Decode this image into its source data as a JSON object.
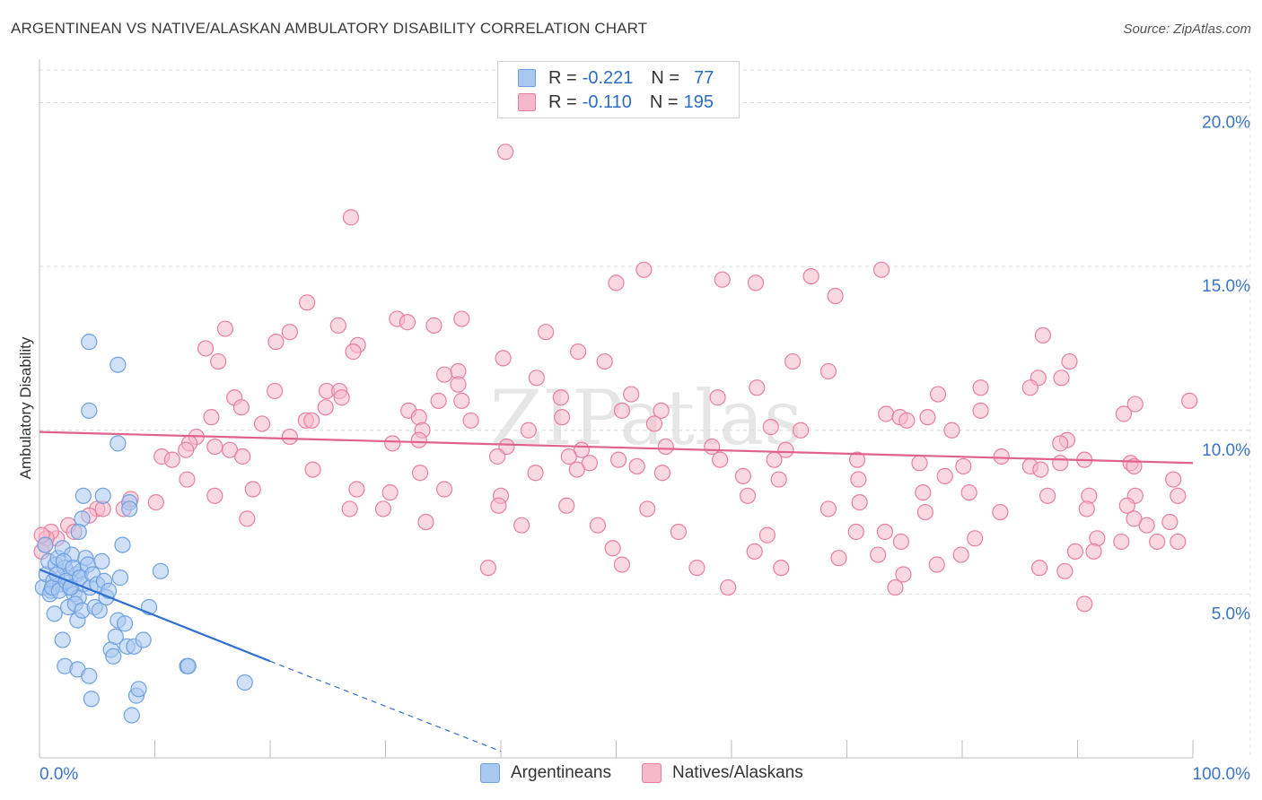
{
  "title": "ARGENTINEAN VS NATIVE/ALASKAN AMBULATORY DISABILITY CORRELATION CHART",
  "source": "Source: ZipAtlas.com",
  "watermark": "ZIPatlas",
  "legend": {
    "rows": [
      {
        "r_label": "R =",
        "r_value": "-0.221",
        "n_label": "N =",
        "n_value": "77",
        "color": "#a9c8f0"
      },
      {
        "r_label": "R =",
        "r_value": "-0.110",
        "n_label": "N =",
        "n_value": "195",
        "color": "#f5b8cb"
      }
    ]
  },
  "bottom_legend": [
    {
      "label": "Argentineans",
      "color": "#a9c8f0"
    },
    {
      "label": "Natives/Alaskans",
      "color": "#f5b8cb"
    }
  ],
  "chart_data": {
    "type": "scatter",
    "title": "ARGENTINEAN VS NATIVE/ALASKAN AMBULATORY DISABILITY CORRELATION CHART",
    "xlabel": "",
    "ylabel": "Ambulatory Disability",
    "xlim": [
      0,
      100
    ],
    "ylim": [
      0,
      21
    ],
    "x_tick_labels": [
      "0.0%",
      "100.0%"
    ],
    "y_ticks": [
      5,
      10,
      15,
      20
    ],
    "y_tick_labels": [
      "5.0%",
      "10.0%",
      "15.0%",
      "20.0%"
    ],
    "grid": true,
    "series": [
      {
        "name": "Argentineans",
        "color": "#6fa1e0",
        "fill": "#a9c8f0",
        "trend": {
          "x0": 0,
          "y0": 5.75,
          "x1": 20,
          "y1": 2.95,
          "dash_to_x": 40,
          "dash_to_y": 0.2
        },
        "points": [
          [
            0.3,
            5.2
          ],
          [
            0.6,
            5.6
          ],
          [
            0.8,
            6.0
          ],
          [
            1.0,
            5.1
          ],
          [
            1.2,
            5.4
          ],
          [
            1.4,
            5.9
          ],
          [
            1.6,
            6.1
          ],
          [
            1.8,
            5.3
          ],
          [
            2.0,
            6.4
          ],
          [
            2.2,
            5.8
          ],
          [
            2.4,
            5.5
          ],
          [
            2.6,
            5.2
          ],
          [
            2.8,
            6.2
          ],
          [
            3.0,
            5.0
          ],
          [
            3.2,
            5.6
          ],
          [
            3.4,
            4.9
          ],
          [
            3.6,
            5.7
          ],
          [
            3.8,
            5.3
          ],
          [
            0.5,
            6.5
          ],
          [
            0.9,
            5.0
          ],
          [
            1.1,
            5.2
          ],
          [
            1.3,
            4.4
          ],
          [
            1.5,
            5.6
          ],
          [
            1.7,
            5.1
          ],
          [
            2.1,
            6.0
          ],
          [
            2.3,
            5.4
          ],
          [
            2.5,
            4.6
          ],
          [
            2.7,
            5.2
          ],
          [
            2.9,
            5.8
          ],
          [
            3.1,
            4.7
          ],
          [
            3.3,
            4.2
          ],
          [
            3.5,
            5.5
          ],
          [
            3.7,
            4.5
          ],
          [
            4.0,
            6.1
          ],
          [
            4.2,
            5.9
          ],
          [
            4.4,
            5.2
          ],
          [
            4.6,
            5.6
          ],
          [
            4.8,
            4.6
          ],
          [
            5.0,
            5.3
          ],
          [
            5.2,
            4.5
          ],
          [
            5.4,
            6.0
          ],
          [
            5.6,
            5.4
          ],
          [
            5.8,
            4.9
          ],
          [
            6.0,
            5.1
          ],
          [
            6.2,
            3.3
          ],
          [
            6.4,
            3.1
          ],
          [
            6.6,
            3.7
          ],
          [
            6.8,
            4.2
          ],
          [
            7.0,
            5.5
          ],
          [
            7.2,
            6.5
          ],
          [
            7.4,
            4.1
          ],
          [
            7.6,
            3.4
          ],
          [
            7.8,
            7.8
          ],
          [
            8.0,
            1.3
          ],
          [
            8.2,
            3.4
          ],
          [
            8.4,
            1.9
          ],
          [
            8.6,
            2.1
          ],
          [
            9.0,
            3.6
          ],
          [
            9.5,
            4.6
          ],
          [
            10.5,
            5.7
          ],
          [
            12.8,
            2.8
          ],
          [
            12.9,
            2.8
          ],
          [
            17.8,
            2.3
          ],
          [
            4.3,
            12.7
          ],
          [
            6.8,
            12.0
          ],
          [
            4.3,
            10.6
          ],
          [
            6.8,
            9.6
          ],
          [
            3.8,
            8.0
          ],
          [
            5.5,
            8.0
          ],
          [
            7.8,
            7.6
          ],
          [
            3.7,
            7.3
          ],
          [
            3.4,
            6.9
          ],
          [
            2.2,
            2.8
          ],
          [
            3.3,
            2.7
          ],
          [
            4.5,
            1.8
          ],
          [
            4.3,
            2.5
          ],
          [
            2.0,
            3.6
          ]
        ]
      },
      {
        "name": "Natives/Alaskans",
        "color": "#e97fa0",
        "fill": "#f5b8cb",
        "trend": {
          "x0": 0,
          "y0": 9.95,
          "x1": 100,
          "y1": 9.0
        },
        "points": [
          [
            40.4,
            18.5
          ],
          [
            27,
            16.5
          ],
          [
            52.4,
            14.9
          ],
          [
            73,
            14.9
          ],
          [
            50,
            14.5
          ],
          [
            59.2,
            14.6
          ],
          [
            66.9,
            14.7
          ],
          [
            62.1,
            14.5
          ],
          [
            69,
            14.1
          ],
          [
            23.2,
            13.9
          ],
          [
            31.0,
            13.4
          ],
          [
            36.6,
            13.4
          ],
          [
            31.9,
            13.3
          ],
          [
            34.2,
            13.2
          ],
          [
            25.9,
            13.2
          ],
          [
            16.1,
            13.1
          ],
          [
            21.7,
            13.0
          ],
          [
            43.9,
            13.0
          ],
          [
            87,
            12.9
          ],
          [
            20.5,
            12.7
          ],
          [
            27.6,
            12.6
          ],
          [
            14.4,
            12.5
          ],
          [
            27.2,
            12.4
          ],
          [
            46.7,
            12.4
          ],
          [
            40.2,
            12.2
          ],
          [
            15.5,
            12.1
          ],
          [
            49.0,
            12.1
          ],
          [
            65.3,
            12.1
          ],
          [
            89.3,
            12.1
          ],
          [
            36.3,
            11.8
          ],
          [
            68.4,
            11.8
          ],
          [
            35.1,
            11.7
          ],
          [
            43.1,
            11.6
          ],
          [
            86.6,
            11.6
          ],
          [
            88.6,
            11.6
          ],
          [
            36.3,
            11.4
          ],
          [
            81.6,
            11.3
          ],
          [
            85.9,
            11.3
          ],
          [
            24.9,
            11.2
          ],
          [
            26.0,
            11.2
          ],
          [
            20.4,
            11.2
          ],
          [
            62.2,
            11.3
          ],
          [
            51.3,
            11.1
          ],
          [
            77.9,
            11.1
          ],
          [
            16.9,
            11.0
          ],
          [
            26.2,
            11.0
          ],
          [
            45.2,
            11.0
          ],
          [
            58.8,
            11.0
          ],
          [
            36.6,
            10.9
          ],
          [
            34.6,
            10.9
          ],
          [
            99.7,
            10.9
          ],
          [
            95,
            10.8
          ],
          [
            17.5,
            10.7
          ],
          [
            24.8,
            10.7
          ],
          [
            32.0,
            10.6
          ],
          [
            50.5,
            10.6
          ],
          [
            53.9,
            10.6
          ],
          [
            81.6,
            10.6
          ],
          [
            73.4,
            10.5
          ],
          [
            74.6,
            10.4
          ],
          [
            77,
            10.4
          ],
          [
            94,
            10.5
          ],
          [
            32.9,
            10.4
          ],
          [
            45.3,
            10.4
          ],
          [
            14.9,
            10.4
          ],
          [
            23.1,
            10.3
          ],
          [
            37.4,
            10.3
          ],
          [
            75.2,
            10.3
          ],
          [
            19.3,
            10.2
          ],
          [
            63.4,
            10.1
          ],
          [
            23.6,
            10.3
          ],
          [
            33.2,
            10.0
          ],
          [
            42.4,
            10.0
          ],
          [
            66.0,
            10.0
          ],
          [
            79.1,
            10.0
          ],
          [
            53.3,
            10.2
          ],
          [
            13.6,
            9.8
          ],
          [
            21.7,
            9.8
          ],
          [
            13.0,
            9.6
          ],
          [
            15.2,
            9.5
          ],
          [
            30.6,
            9.6
          ],
          [
            32.9,
            9.7
          ],
          [
            40.5,
            9.5
          ],
          [
            47.0,
            9.4
          ],
          [
            54.3,
            9.5
          ],
          [
            58.3,
            9.5
          ],
          [
            64.7,
            9.4
          ],
          [
            89.1,
            9.7
          ],
          [
            88.5,
            9.6
          ],
          [
            16.5,
            9.4
          ],
          [
            12.7,
            9.4
          ],
          [
            17.6,
            9.2
          ],
          [
            10.6,
            9.2
          ],
          [
            11.5,
            9.1
          ],
          [
            45.9,
            9.2
          ],
          [
            50.2,
            9.1
          ],
          [
            39.7,
            9.2
          ],
          [
            47.7,
            9.0
          ],
          [
            51.8,
            8.9
          ],
          [
            59.0,
            9.1
          ],
          [
            63.7,
            9.1
          ],
          [
            70.9,
            9.1
          ],
          [
            83.4,
            9.2
          ],
          [
            88.5,
            9.0
          ],
          [
            76.3,
            9.0
          ],
          [
            90.6,
            9.1
          ],
          [
            94.6,
            9.0
          ],
          [
            94.9,
            8.9
          ],
          [
            85.9,
            8.9
          ],
          [
            80.1,
            8.9
          ],
          [
            23.7,
            8.8
          ],
          [
            33.0,
            8.7
          ],
          [
            43.0,
            8.7
          ],
          [
            46.6,
            8.8
          ],
          [
            54.0,
            8.7
          ],
          [
            61.0,
            8.6
          ],
          [
            64.1,
            8.5
          ],
          [
            71.0,
            8.5
          ],
          [
            78.5,
            8.6
          ],
          [
            86.8,
            8.8
          ],
          [
            98.3,
            8.5
          ],
          [
            12.8,
            8.5
          ],
          [
            18.5,
            8.2
          ],
          [
            27.5,
            8.2
          ],
          [
            30.4,
            8.1
          ],
          [
            35.1,
            8.2
          ],
          [
            40.0,
            8.0
          ],
          [
            61.4,
            8.0
          ],
          [
            71.1,
            7.8
          ],
          [
            76.6,
            8.1
          ],
          [
            80.6,
            8.1
          ],
          [
            87.4,
            8.0
          ],
          [
            98.7,
            8.0
          ],
          [
            91.0,
            8.0
          ],
          [
            95.0,
            8.0
          ],
          [
            15.2,
            8.0
          ],
          [
            10.1,
            7.8
          ],
          [
            7.9,
            7.9
          ],
          [
            7.3,
            7.6
          ],
          [
            5.0,
            7.6
          ],
          [
            26.9,
            7.6
          ],
          [
            29.8,
            7.6
          ],
          [
            39.8,
            7.7
          ],
          [
            45.7,
            7.7
          ],
          [
            52.7,
            7.6
          ],
          [
            68.4,
            7.6
          ],
          [
            76.8,
            7.5
          ],
          [
            83.3,
            7.5
          ],
          [
            90.8,
            7.6
          ],
          [
            94.3,
            7.7
          ],
          [
            94.9,
            7.3
          ],
          [
            96.0,
            7.1
          ],
          [
            98.0,
            7.2
          ],
          [
            4.3,
            7.4
          ],
          [
            5.5,
            7.6
          ],
          [
            2.5,
            7.1
          ],
          [
            3.0,
            6.9
          ],
          [
            1.5,
            6.7
          ],
          [
            1.0,
            6.9
          ],
          [
            0.6,
            6.7
          ],
          [
            0.2,
            6.3
          ],
          [
            0.5,
            6.5
          ],
          [
            0.2,
            6.8
          ],
          [
            18.0,
            7.3
          ],
          [
            33.5,
            7.2
          ],
          [
            41.8,
            7.1
          ],
          [
            48.4,
            7.1
          ],
          [
            55.4,
            6.9
          ],
          [
            63.1,
            6.8
          ],
          [
            70.8,
            6.9
          ],
          [
            73.3,
            6.9
          ],
          [
            74.7,
            6.6
          ],
          [
            81.1,
            6.7
          ],
          [
            91.7,
            6.7
          ],
          [
            93.8,
            6.6
          ],
          [
            96.9,
            6.6
          ],
          [
            98.7,
            6.6
          ],
          [
            49.7,
            6.4
          ],
          [
            62.0,
            6.3
          ],
          [
            69.3,
            6.1
          ],
          [
            72.7,
            6.2
          ],
          [
            79.9,
            6.2
          ],
          [
            89.8,
            6.3
          ],
          [
            91.4,
            6.3
          ],
          [
            88.9,
            5.7
          ],
          [
            74.9,
            5.6
          ],
          [
            77.8,
            5.9
          ],
          [
            64.3,
            5.8
          ],
          [
            50.5,
            5.9
          ],
          [
            38.9,
            5.8
          ],
          [
            86.7,
            5.8
          ],
          [
            57.0,
            5.8
          ],
          [
            59.7,
            5.2
          ],
          [
            74.2,
            5.2
          ],
          [
            90.6,
            4.7
          ]
        ]
      }
    ]
  }
}
